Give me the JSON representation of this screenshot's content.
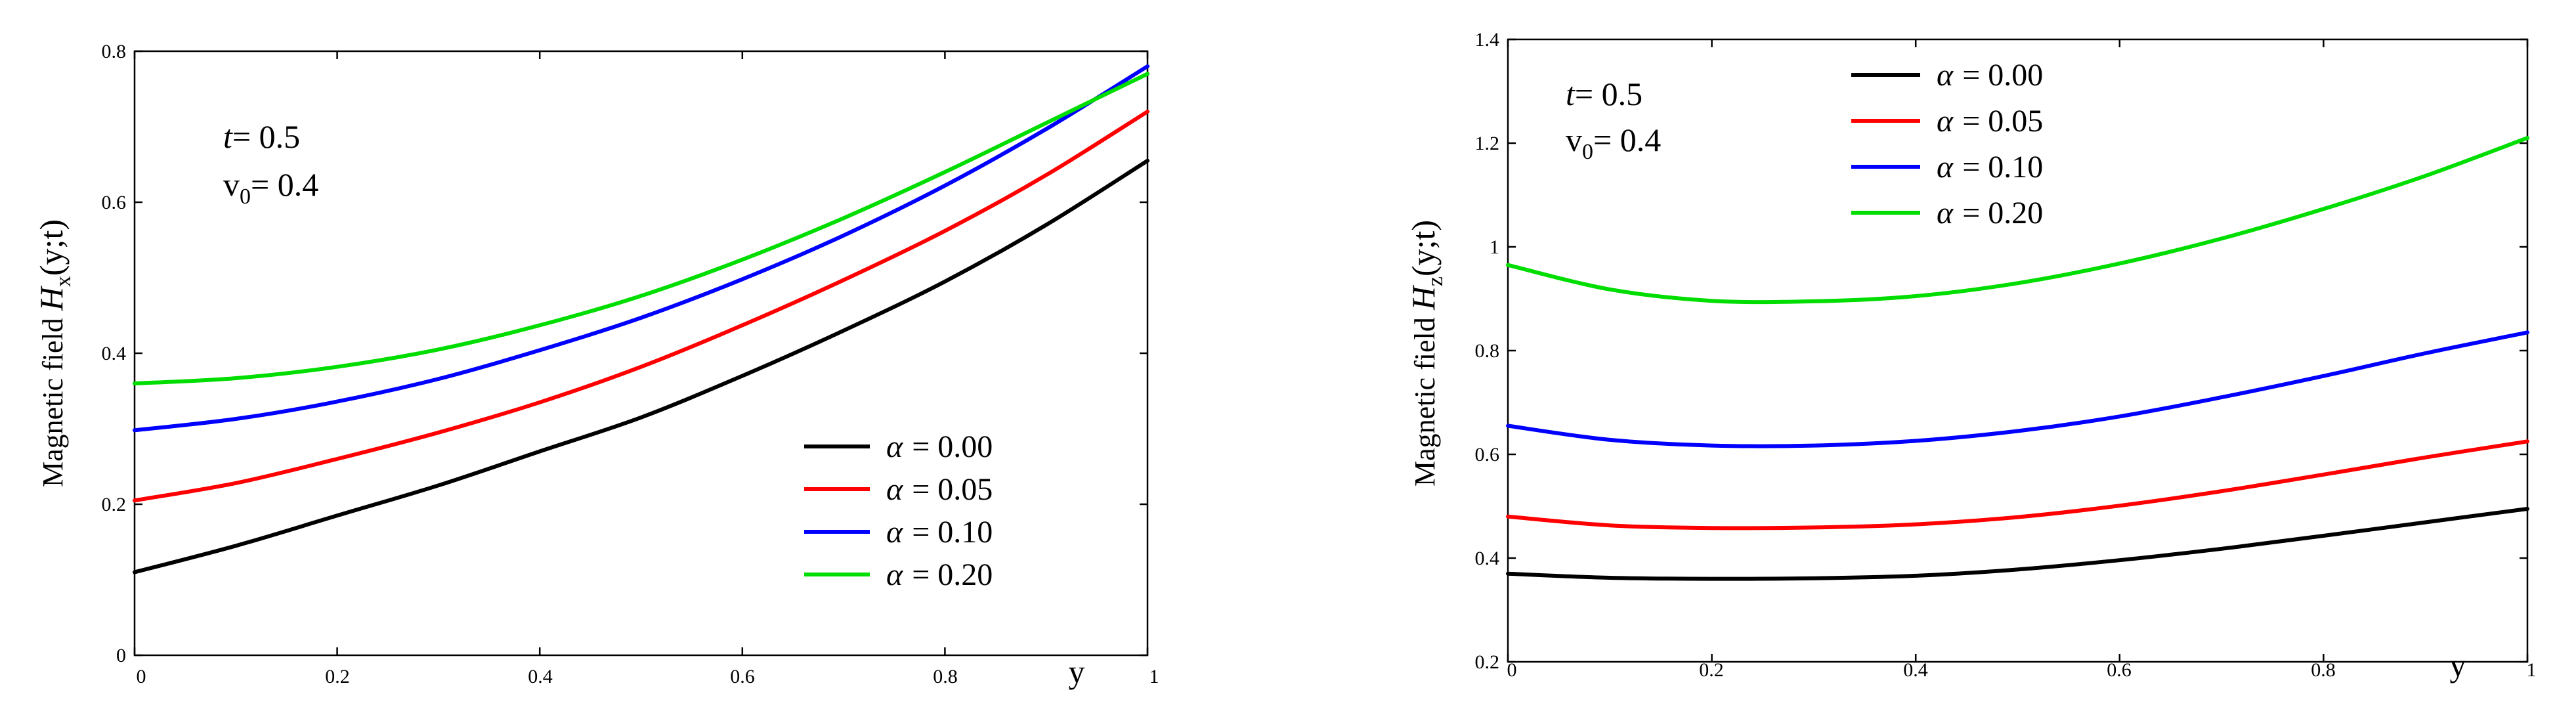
{
  "chart_data": [
    {
      "type": "line",
      "id": "hx",
      "ylabel_prefix": "Magnetic field ",
      "ylabel_var": "H",
      "ylabel_sub": "x",
      "ylabel_args": "(y;t)",
      "xlabel": "y",
      "xlim": [
        0,
        1
      ],
      "ylim": [
        0,
        0.8
      ],
      "xticks": [
        "0",
        "0.2",
        "0.4",
        "0.6",
        "0.8",
        "1"
      ],
      "xtick_values": [
        0,
        0.2,
        0.4,
        0.6,
        0.8,
        1
      ],
      "yticks": [
        "0",
        "0.2",
        "0.4",
        "0.6",
        "0.8"
      ],
      "ytick_values": [
        0,
        0.2,
        0.4,
        0.6,
        0.8
      ],
      "annotations": {
        "t_var": "t",
        "t_value": "= 0.5",
        "v_var": "v",
        "v_sub": "0",
        "v_value": "= 0.4"
      },
      "x": [
        0,
        0.1,
        0.2,
        0.3,
        0.4,
        0.5,
        0.6,
        0.7,
        0.8,
        0.9,
        1.0
      ],
      "series": [
        {
          "name": "α = 0.00",
          "symbol": "α",
          "value_label": "= 0.00",
          "color": "#000000",
          "values": [
            0.11,
            0.145,
            0.185,
            0.225,
            0.27,
            0.315,
            0.37,
            0.43,
            0.495,
            0.57,
            0.655
          ]
        },
        {
          "name": "α = 0.05",
          "symbol": "α",
          "value_label": "= 0.05",
          "color": "#ff0000",
          "values": [
            0.205,
            0.228,
            0.26,
            0.295,
            0.335,
            0.382,
            0.437,
            0.497,
            0.562,
            0.636,
            0.72
          ]
        },
        {
          "name": "α = 0.10",
          "symbol": "α",
          "value_label": "= 0.10",
          "color": "#0000ff",
          "values": [
            0.298,
            0.313,
            0.336,
            0.366,
            0.404,
            0.447,
            0.498,
            0.556,
            0.622,
            0.697,
            0.78
          ]
        },
        {
          "name": "α = 0.20",
          "symbol": "α",
          "value_label": "= 0.20",
          "color": "#00dd00",
          "values": [
            0.36,
            0.367,
            0.382,
            0.405,
            0.437,
            0.476,
            0.524,
            0.579,
            0.64,
            0.705,
            0.77
          ]
        }
      ]
    },
    {
      "type": "line",
      "id": "hz",
      "ylabel_prefix": "Magnetic field ",
      "ylabel_var": "H",
      "ylabel_sub": "z",
      "ylabel_args": "(y;t)",
      "xlabel": "y",
      "xlim": [
        0,
        1
      ],
      "ylim": [
        0.2,
        1.4
      ],
      "xticks": [
        "0",
        "0.2",
        "0.4",
        "0.6",
        "0.8",
        "1"
      ],
      "xtick_values": [
        0,
        0.2,
        0.4,
        0.6,
        0.8,
        1
      ],
      "yticks": [
        "0.2",
        "0.4",
        "0.6",
        "0.8",
        "1",
        "1.2",
        "1.4"
      ],
      "ytick_values": [
        0.2,
        0.4,
        0.6,
        0.8,
        1.0,
        1.2,
        1.4
      ],
      "annotations": {
        "t_var": "t",
        "t_value": "= 0.5",
        "v_var": "v",
        "v_sub": "0",
        "v_value": "= 0.4"
      },
      "x": [
        0,
        0.1,
        0.2,
        0.3,
        0.4,
        0.5,
        0.6,
        0.7,
        0.8,
        0.9,
        1.0
      ],
      "series": [
        {
          "name": "α = 0.00",
          "symbol": "α",
          "value_label": "= 0.00",
          "color": "#000000",
          "values": [
            0.37,
            0.362,
            0.36,
            0.361,
            0.366,
            0.378,
            0.396,
            0.418,
            0.443,
            0.469,
            0.495
          ]
        },
        {
          "name": "α = 0.05",
          "symbol": "α",
          "value_label": "= 0.05",
          "color": "#ff0000",
          "values": [
            0.48,
            0.463,
            0.458,
            0.459,
            0.465,
            0.479,
            0.501,
            0.529,
            0.561,
            0.594,
            0.625
          ]
        },
        {
          "name": "α = 0.10",
          "symbol": "α",
          "value_label": "= 0.10",
          "color": "#0000ff",
          "values": [
            0.655,
            0.628,
            0.617,
            0.617,
            0.626,
            0.645,
            0.673,
            0.71,
            0.751,
            0.795,
            0.835
          ]
        },
        {
          "name": "α = 0.20",
          "symbol": "α",
          "value_label": "= 0.20",
          "color": "#00dd00",
          "values": [
            0.965,
            0.918,
            0.896,
            0.895,
            0.905,
            0.93,
            0.968,
            1.016,
            1.073,
            1.137,
            1.21
          ]
        }
      ]
    }
  ]
}
